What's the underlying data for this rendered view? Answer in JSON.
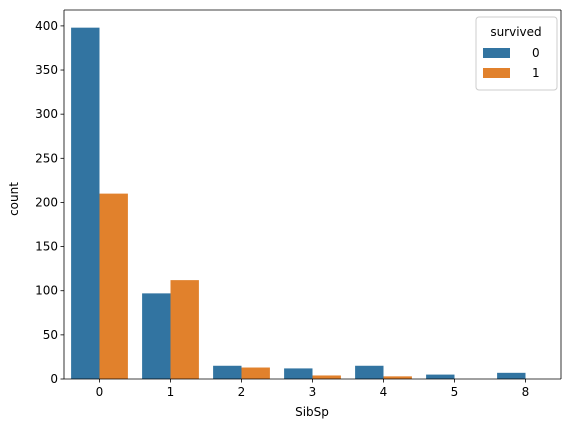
{
  "chart_data": {
    "type": "bar",
    "categories": [
      "0",
      "1",
      "2",
      "3",
      "4",
      "5",
      "8"
    ],
    "series": [
      {
        "name": "0",
        "color": "#3274a1",
        "values": [
          398,
          97,
          15,
          12,
          15,
          5,
          7
        ]
      },
      {
        "name": "1",
        "color": "#e1812c",
        "values": [
          210,
          112,
          13,
          4,
          3,
          0,
          0
        ]
      }
    ],
    "xlabel": "SibSp",
    "ylabel": "count",
    "ylim": [
      0,
      418
    ],
    "yticks": [
      0,
      50,
      100,
      150,
      200,
      250,
      300,
      350,
      400
    ],
    "grid": false,
    "legend": {
      "title": "survived",
      "position": "top-right"
    }
  }
}
